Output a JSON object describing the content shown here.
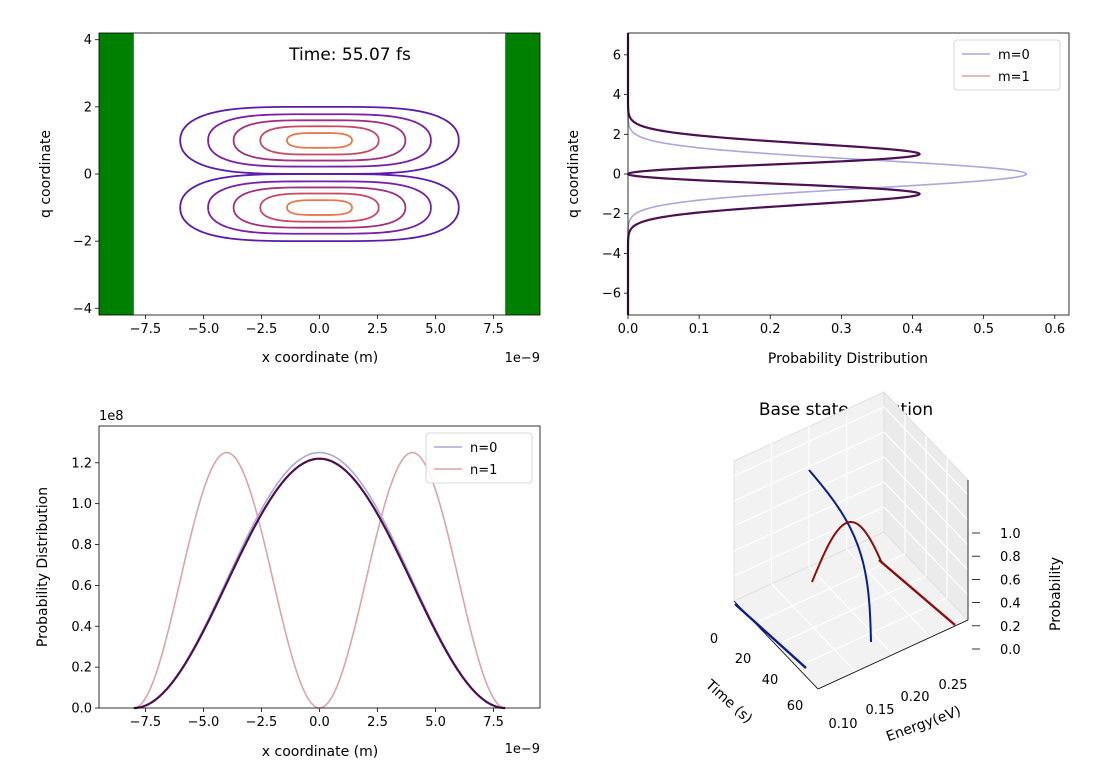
{
  "colors": {
    "wall": "#008000",
    "series_light_blue": "#a9a7dc",
    "series_light_red": "#d9a5a5",
    "series_dark_purple": "#4b1050",
    "navy": "#0b1d8c",
    "dark_red": "#8b0d0d",
    "contours": [
      "#5b1aa8",
      "#7a1fa6",
      "#a0307e",
      "#c84a62",
      "#e7784d"
    ]
  },
  "chart_data": [
    {
      "id": "contour",
      "type": "contour",
      "annotation": "Time: 55.07 fs",
      "xlabel": "x coordinate (m)",
      "ylabel": "q coordinate",
      "x_offset_text": "1e−9",
      "xlim": [
        -9.5,
        9.5
      ],
      "ylim": [
        -4.2,
        4.2
      ],
      "x_ticks": [
        -7.5,
        -5.0,
        -2.5,
        0.0,
        2.5,
        5.0,
        7.5
      ],
      "x_tick_labels": [
        "−7.5",
        "−5.0",
        "−2.5",
        "0.0",
        "2.5",
        "5.0",
        "7.5"
      ],
      "y_ticks": [
        -4,
        -2,
        0,
        2,
        4
      ],
      "y_tick_labels": [
        "−4",
        "−2",
        "0",
        "2",
        "4"
      ],
      "walls": [
        [
          -9.5,
          -8.0
        ],
        [
          8.0,
          9.5
        ]
      ],
      "lobes": [
        {
          "center": [
            0,
            1.0
          ],
          "levels": [
            [
              6.0,
              1.0
            ],
            [
              4.8,
              0.78
            ],
            [
              3.7,
              0.6
            ],
            [
              2.55,
              0.42
            ],
            [
              1.4,
              0.22
            ]
          ]
        },
        {
          "center": [
            0,
            -1.0
          ],
          "levels": [
            [
              6.0,
              1.0
            ],
            [
              4.8,
              0.78
            ],
            [
              3.7,
              0.6
            ],
            [
              2.55,
              0.42
            ],
            [
              1.4,
              0.22
            ]
          ]
        }
      ]
    },
    {
      "id": "q-distribution",
      "type": "line",
      "xlabel": "Probability Distribution",
      "ylabel": "q coordinate",
      "xlim": [
        0,
        0.62
      ],
      "ylim": [
        -7.1,
        7.1
      ],
      "x_ticks": [
        0.0,
        0.1,
        0.2,
        0.3,
        0.4,
        0.5,
        0.6
      ],
      "x_tick_labels": [
        "0.0",
        "0.1",
        "0.2",
        "0.3",
        "0.4",
        "0.5",
        "0.6"
      ],
      "y_ticks": [
        -6,
        -4,
        -2,
        0,
        2,
        4,
        6
      ],
      "y_tick_labels": [
        "−6",
        "−4",
        "−2",
        "0",
        "2",
        "4",
        "6"
      ],
      "legend": [
        "m=0",
        "m=1"
      ],
      "series": [
        {
          "name": "m=0",
          "model": "gaussian",
          "amplitude": 0.56,
          "sigma": 0.71
        },
        {
          "name": "m=1",
          "model": "first-excited",
          "amplitude": 0.41,
          "sigma": 0.71
        },
        {
          "name": "",
          "model": "first-excited",
          "amplitude": 0.41,
          "sigma": 0.71
        }
      ]
    },
    {
      "id": "x-distribution",
      "type": "line",
      "xlabel": "x coordinate (m)",
      "ylabel": "Probability Distribution",
      "x_offset_text": "1e−9",
      "y_offset_text": "1e8",
      "xlim": [
        -9.5,
        9.5
      ],
      "ylim": [
        0,
        1.38
      ],
      "x_ticks": [
        -7.5,
        -5.0,
        -2.5,
        0.0,
        2.5,
        5.0,
        7.5
      ],
      "x_tick_labels": [
        "−7.5",
        "−5.0",
        "−2.5",
        "0.0",
        "2.5",
        "5.0",
        "7.5"
      ],
      "y_ticks": [
        0.0,
        0.2,
        0.4,
        0.6,
        0.8,
        1.0,
        1.2
      ],
      "y_tick_labels": [
        "0.0",
        "0.2",
        "0.4",
        "0.6",
        "0.8",
        "1.0",
        "1.2"
      ],
      "legend": [
        "n=0",
        "n=1"
      ],
      "series": [
        {
          "name": "n=0",
          "model": "cos2",
          "amplitude": 1.25,
          "half_width": 8.0
        },
        {
          "name": "n=1",
          "model": "sin2",
          "amplitude": 1.25,
          "half_width": 8.0
        },
        {
          "name": "",
          "model": "cos2",
          "amplitude": 1.22,
          "half_width": 8.0
        }
      ]
    },
    {
      "id": "base-state-3d",
      "type": "line3d",
      "title": "Base state evolution",
      "xlabel": "Time (s)",
      "ylabel": "Energy(eV)",
      "zlabel": "Probability",
      "x_tick_labels": [
        "0",
        "20",
        "40",
        "60"
      ],
      "y_tick_labels": [
        "0.10",
        "0.15",
        "0.20",
        "0.25"
      ],
      "z_tick_labels": [
        "0.0",
        "0.2",
        "0.4",
        "0.6",
        "0.8",
        "1.0"
      ]
    }
  ]
}
